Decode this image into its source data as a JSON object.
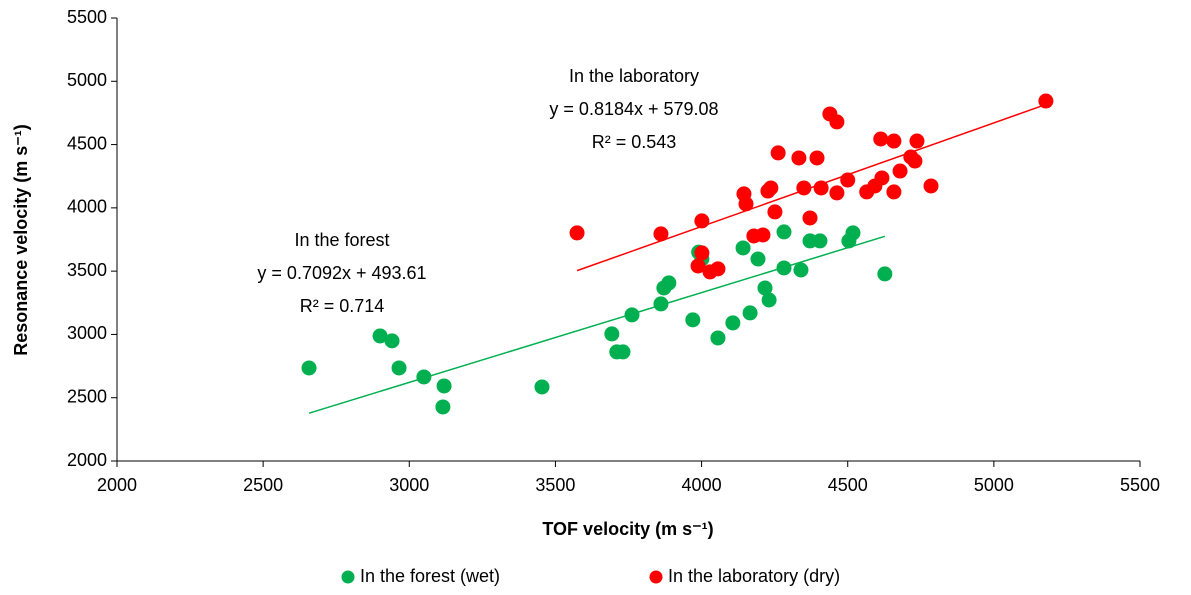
{
  "chart_data": {
    "type": "scatter",
    "x_label": "TOF velocity (m s⁻¹)",
    "y_label": "Resonance velocity (m s⁻¹)",
    "xlim": [
      2000,
      5500
    ],
    "ylim": [
      2000,
      5500
    ],
    "xticks": [
      2000,
      2500,
      3000,
      3500,
      4000,
      4500,
      5000,
      5500
    ],
    "yticks": [
      2000,
      2500,
      3000,
      3500,
      4000,
      4500,
      5000,
      5500
    ],
    "legend": "bottom",
    "series": [
      {
        "name": "In the forest (wet)",
        "color": "#00b050",
        "x": [
          2657,
          2965,
          3050,
          3119,
          3115,
          2900,
          2941,
          3454,
          3693,
          3710,
          3731,
          3762,
          3861,
          3871,
          3888,
          3970,
          4001,
          3990,
          4056,
          4107,
          4142,
          4166,
          4193,
          4217,
          4231,
          4282,
          4282,
          4340,
          4371,
          4405,
          4504,
          4518,
          4627
        ],
        "values": [
          2735,
          2735,
          2664,
          2593,
          2427,
          2988,
          2949,
          2585,
          3004,
          2862,
          2862,
          3154,
          3241,
          3367,
          3407,
          3115,
          3596,
          3650,
          2972,
          3091,
          3683,
          3170,
          3596,
          3367,
          3272,
          3810,
          3525,
          3509,
          3739,
          3739,
          3739,
          3802,
          3478
        ],
        "trendline": {
          "slope": 0.7092,
          "intercept": 493.61
        }
      },
      {
        "name": "In the laboratory (dry)",
        "color": "#ff0000",
        "x": [
          3574,
          3861,
          4001,
          4001,
          3988,
          4029,
          4056,
          4145,
          4152,
          4210,
          4179,
          4227,
          4237,
          4251,
          4262,
          4333,
          4350,
          4371,
          4395,
          4409,
          4439,
          4463,
          4463,
          4500,
          4565,
          4593,
          4613,
          4617,
          4658,
          4658,
          4679,
          4716,
          4730,
          4737,
          4785,
          5178
        ],
        "values": [
          3802,
          3794,
          3897,
          3644,
          3541,
          3494,
          3518,
          4110,
          4031,
          3786,
          3778,
          4133,
          4157,
          3968,
          4434,
          4394,
          4157,
          3920,
          4394,
          4157,
          4742,
          4679,
          4118,
          4220,
          4126,
          4173,
          4544,
          4236,
          4528,
          4126,
          4291,
          4402,
          4370,
          4528,
          4173,
          4844
        ],
        "trendline": {
          "slope": 0.8184,
          "intercept": 579.08
        }
      }
    ],
    "annotations": [
      {
        "lines": [
          "In the forest",
          "y = 0.7092x + 493.61",
          "R² = 0.714"
        ]
      },
      {
        "lines": [
          "In the laboratory",
          "y = 0.8184x + 579.08",
          "R² = 0.543"
        ]
      }
    ]
  }
}
